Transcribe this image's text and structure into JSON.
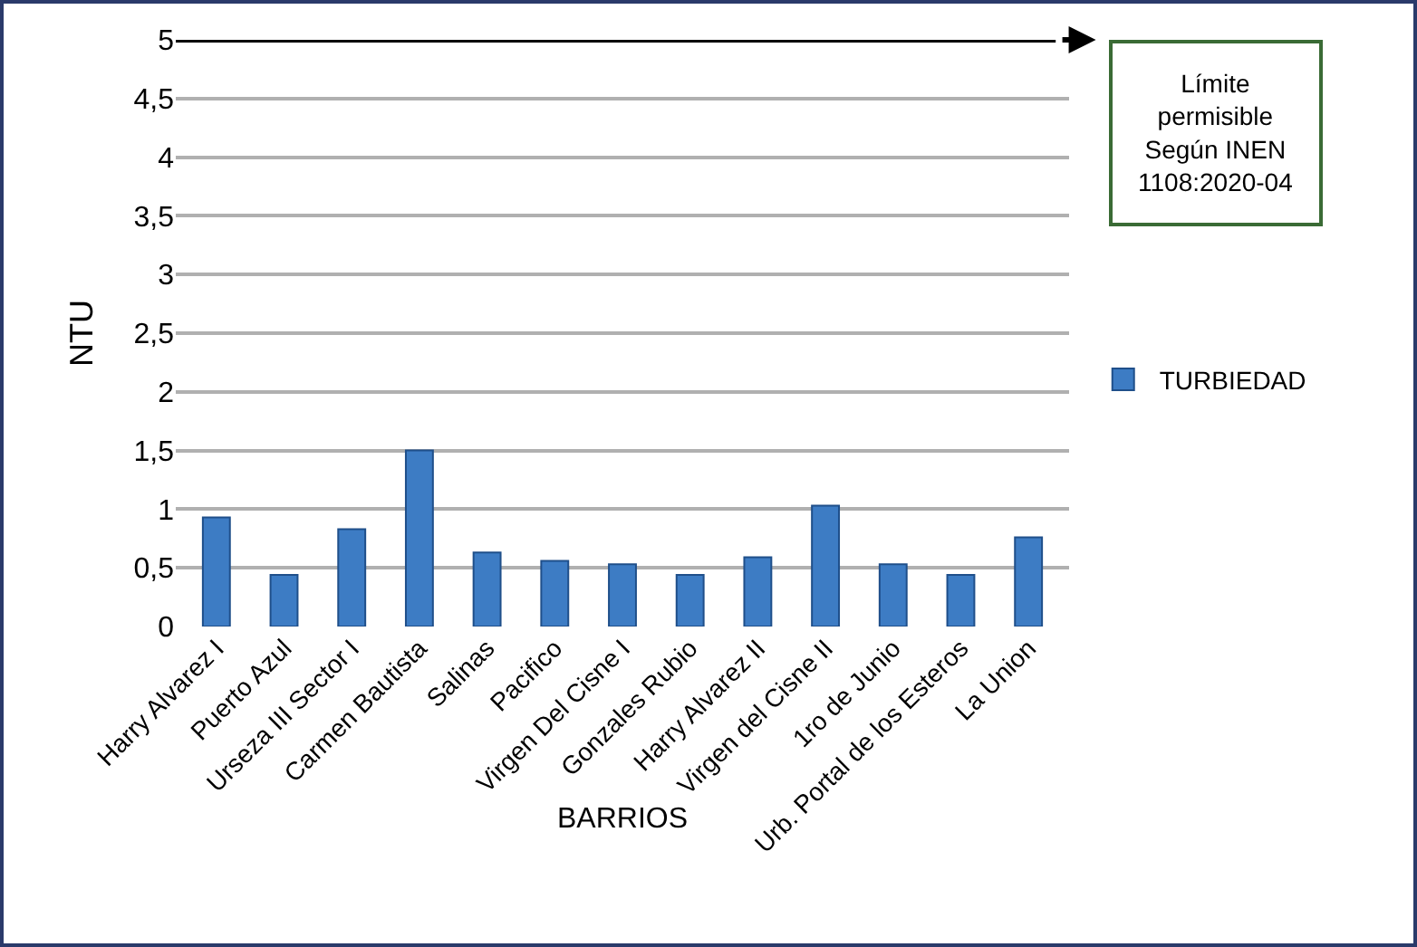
{
  "chart_data": {
    "type": "bar",
    "xlabel": "BARRIOS",
    "ylabel": "NTU",
    "categories": [
      "Harry Alvarez I",
      "Puerto Azul",
      "Urseza III Sector I",
      "Carmen Bautista",
      "Salinas",
      "Pacifico",
      "Virgen Del Cisne I",
      "Gonzales Rubio",
      "Harry Alvarez II",
      "Virgen del Cisne II",
      "1ro de Junio",
      "Urb. Portal de los Esteros",
      "La Union"
    ],
    "series": [
      {
        "name": "TURBIEDAD",
        "color": "#3d7cc4",
        "values": [
          0.93,
          0.44,
          0.83,
          1.5,
          0.63,
          0.56,
          0.53,
          0.44,
          0.59,
          1.03,
          0.53,
          0.44,
          0.76
        ]
      }
    ],
    "ylim": [
      0,
      5
    ],
    "yticks": [
      0,
      {
        "value": 0.5,
        "label": "0,5"
      },
      1,
      {
        "value": 1.5,
        "label": "1,5"
      },
      2,
      {
        "value": 2.5,
        "label": "2,5"
      },
      3,
      {
        "value": 3.5,
        "label": "3,5"
      },
      4,
      {
        "value": 4.5,
        "label": "4,5"
      },
      5
    ],
    "grid": "y",
    "legend": "right",
    "ref_lines": [
      {
        "axis": "y",
        "value": 5,
        "color": "#000000"
      }
    ],
    "annotations": [
      "Límite permisible Según INEN 1108:2020-04"
    ]
  }
}
